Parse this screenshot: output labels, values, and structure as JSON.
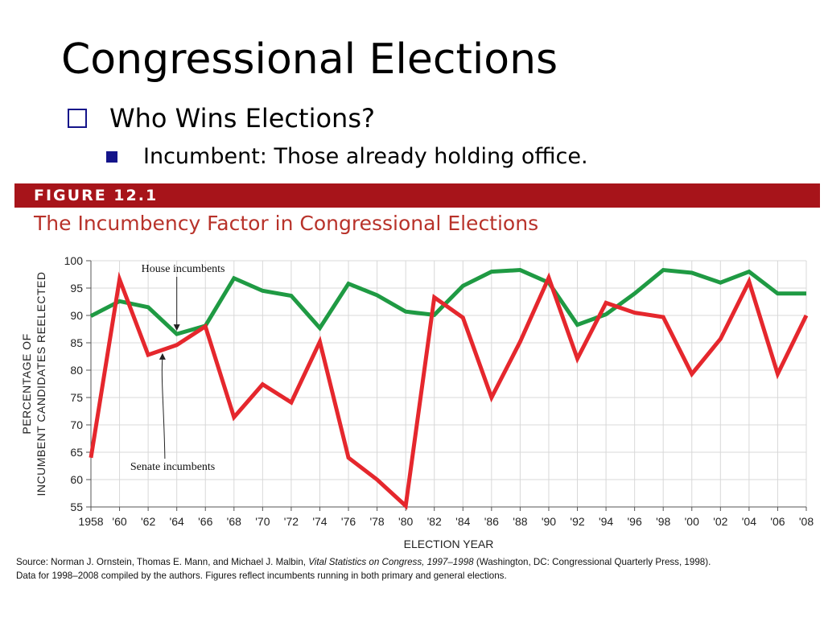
{
  "slide": {
    "title": "Congressional Elections",
    "bullet1": "Who Wins Elections?",
    "bullet2": "Incumbent: Those already holding office.",
    "accent_color": "#14148a"
  },
  "figure": {
    "label": "FIGURE 12.1",
    "title": "The Incumbency Factor in Congressional Elections",
    "bar_color": "#a7141a",
    "title_color": "#b8322a",
    "source_line1_pre": "Source: Norman J. Ornstein, Thomas E. Mann, and Michael J. Malbin, ",
    "source_line1_italic": "Vital Statistics on Congress, 1997–1998",
    "source_line1_post": " (Washington, DC: Congressional Quarterly Press, 1998).",
    "source_line2": "Data for 1998–2008 compiled by the authors. Figures reflect incumbents running in both primary and general elections."
  },
  "chart_data": {
    "type": "line",
    "xlabel": "ELECTION YEAR",
    "ylabel_line1": "PERCENTAGE OF",
    "ylabel_line2": "INCUMBENT CANDIDATES REELECTED",
    "ylim": [
      55,
      100
    ],
    "yticks": [
      55,
      60,
      65,
      70,
      75,
      80,
      85,
      90,
      95,
      100
    ],
    "grid": true,
    "x": [
      1958,
      1960,
      1962,
      1964,
      1966,
      1968,
      1970,
      1972,
      1974,
      1976,
      1978,
      1980,
      1982,
      1984,
      1986,
      1988,
      1990,
      1992,
      1994,
      1996,
      1998,
      2000,
      2002,
      2004,
      2006,
      2008
    ],
    "xtick_labels": [
      "1958",
      "'60",
      "'62",
      "'64",
      "'66",
      "'68",
      "'70",
      "'72",
      "'74",
      "'76",
      "'78",
      "'80",
      "'82",
      "'84",
      "'86",
      "'88",
      "'90",
      "'92",
      "'94",
      "'96",
      "'98",
      "'00",
      "'02",
      "'04",
      "'06",
      "'08"
    ],
    "series": [
      {
        "name": "House incumbents",
        "color": "#1f9a43",
        "values": [
          89.9,
          92.6,
          91.5,
          86.6,
          88.1,
          96.8,
          94.5,
          93.6,
          87.7,
          95.8,
          93.7,
          90.7,
          90.1,
          95.4,
          98.0,
          98.3,
          96.0,
          88.3,
          90.2,
          94.0,
          98.3,
          97.8,
          96.0,
          98.0,
          94.0,
          94.0
        ]
      },
      {
        "name": "Senate incumbents",
        "color": "#e5272d",
        "values": [
          64.0,
          96.6,
          82.8,
          84.6,
          88.0,
          71.4,
          77.4,
          74.1,
          85.2,
          64.0,
          60.0,
          55.2,
          93.3,
          89.6,
          75.0,
          85.2,
          96.9,
          82.1,
          92.3,
          90.5,
          89.7,
          79.3,
          85.7,
          96.2,
          79.3,
          90.0
        ]
      }
    ],
    "annotations": [
      {
        "text": "House incumbents",
        "series": "House incumbents",
        "points_to_year": 1964
      },
      {
        "text": "Senate incumbents",
        "series": "Senate incumbents",
        "points_to_year": 1963
      }
    ]
  }
}
